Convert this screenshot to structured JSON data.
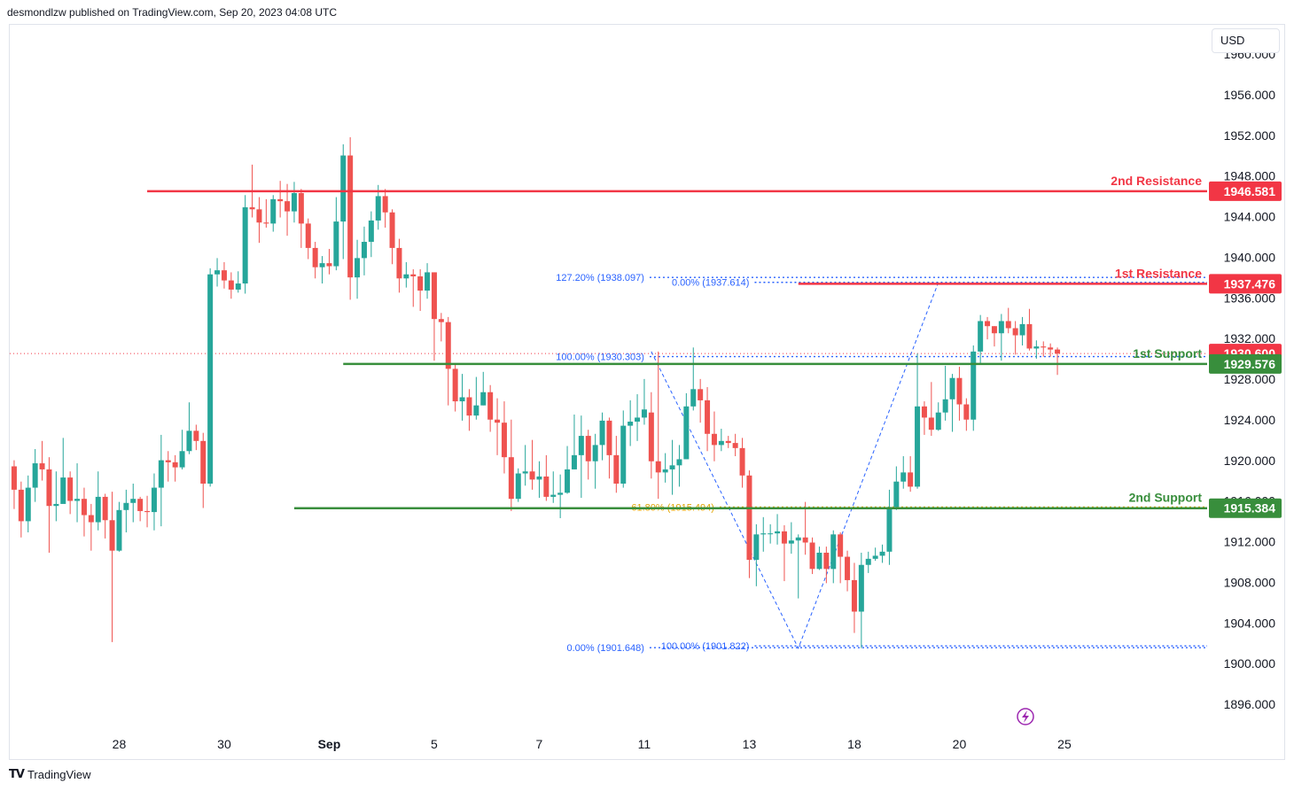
{
  "header": {
    "published_by": "desmondlzw published on TradingView.com, Sep 20, 2023 04:08 UTC"
  },
  "currency_button": "USD",
  "footer": {
    "brand": "TradingView",
    "logo_icon": "tradingview-logo-icon"
  },
  "colors": {
    "up": "#26a69a",
    "down": "#ef5350",
    "resistance": "#f23645",
    "support": "#388e3c",
    "fib": "#2962ff",
    "fib_golden": "#e0a400",
    "bar_down": "#f23645"
  },
  "chart_data": {
    "type": "candlestick",
    "y_range": [
      1893,
      1961
    ],
    "y_ticks": [
      "1960.000",
      "1956.000",
      "1952.000",
      "1948.000",
      "1944.000",
      "1940.000",
      "1936.000",
      "1932.000",
      "1928.000",
      "1924.000",
      "1920.000",
      "1916.000",
      "1912.000",
      "1908.000",
      "1904.000",
      "1900.000",
      "1896.000"
    ],
    "x_ticks": [
      {
        "label": "28",
        "index": 15
      },
      {
        "label": "30",
        "index": 30
      },
      {
        "label": "Sep",
        "index": 45,
        "bold": true
      },
      {
        "label": "5",
        "index": 60
      },
      {
        "label": "7",
        "index": 75
      },
      {
        "label": "11",
        "index": 90
      },
      {
        "label": "13",
        "index": 105
      },
      {
        "label": "18",
        "index": 120
      },
      {
        "label": "20",
        "index": 135
      },
      {
        "label": "25",
        "index": 150
      }
    ],
    "candles": [
      [
        1919.5,
        1917.2,
        1920.1,
        1915.3
      ],
      [
        1917.2,
        1914.1,
        1918.0,
        1912.5
      ],
      [
        1914.1,
        1917.4,
        1918.6,
        1913.0
      ],
      [
        1917.4,
        1919.8,
        1921.2,
        1916.0
      ],
      [
        1919.8,
        1919.2,
        1922.0,
        1918.1
      ],
      [
        1919.2,
        1915.6,
        1920.4,
        1911.0
      ],
      [
        1915.6,
        1915.8,
        1919.0,
        1914.1
      ],
      [
        1915.8,
        1918.4,
        1922.3,
        1916.0
      ],
      [
        1918.4,
        1916.1,
        1919.0,
        1914.8
      ],
      [
        1916.1,
        1916.3,
        1919.8,
        1914.0
      ],
      [
        1916.3,
        1914.7,
        1917.4,
        1912.6
      ],
      [
        1914.7,
        1914.0,
        1915.8,
        1911.2
      ],
      [
        1914.0,
        1916.5,
        1919.0,
        1913.2
      ],
      [
        1916.5,
        1914.2,
        1916.8,
        1912.4
      ],
      [
        1914.2,
        1911.2,
        1917.0,
        1902.2
      ],
      [
        1911.2,
        1915.2,
        1916.0,
        1911.1
      ],
      [
        1915.2,
        1915.9,
        1917.2,
        1913.0
      ],
      [
        1915.9,
        1916.3,
        1917.8,
        1914.0
      ],
      [
        1916.3,
        1915.1,
        1916.5,
        1914.1
      ],
      [
        1915.1,
        1915.0,
        1916.6,
        1913.5
      ],
      [
        1915.0,
        1917.4,
        1918.8,
        1913.2
      ],
      [
        1917.4,
        1920.1,
        1922.6,
        1913.6
      ],
      [
        1920.1,
        1919.9,
        1921.0,
        1918.0
      ],
      [
        1919.9,
        1919.4,
        1920.6,
        1918.0
      ],
      [
        1919.4,
        1921.0,
        1923.1,
        1919.2
      ],
      [
        1921.0,
        1923.0,
        1925.8,
        1920.7
      ],
      [
        1923.0,
        1922.0,
        1923.6,
        1921.1
      ],
      [
        1922.0,
        1917.8,
        1922.8,
        1915.4
      ],
      [
        1917.8,
        1938.4,
        1939.0,
        1917.5
      ],
      [
        1938.4,
        1938.8,
        1940.0,
        1937.2
      ],
      [
        1938.8,
        1937.8,
        1939.6,
        1937.0
      ],
      [
        1937.8,
        1936.9,
        1938.6,
        1936.0
      ],
      [
        1936.9,
        1937.5,
        1938.7,
        1936.6
      ],
      [
        1937.5,
        1945.0,
        1946.2,
        1936.5
      ],
      [
        1945.0,
        1944.8,
        1949.2,
        1944.0
      ],
      [
        1944.8,
        1943.5,
        1946.0,
        1941.5
      ],
      [
        1943.5,
        1943.4,
        1945.8,
        1943.0
      ],
      [
        1943.4,
        1945.8,
        1946.2,
        1942.6
      ],
      [
        1945.8,
        1945.6,
        1947.6,
        1944.0
      ],
      [
        1945.6,
        1944.6,
        1947.3,
        1942.2
      ],
      [
        1944.6,
        1946.4,
        1947.5,
        1943.5
      ],
      [
        1946.4,
        1943.4,
        1946.8,
        1941.0
      ],
      [
        1943.4,
        1941.0,
        1943.9,
        1939.9
      ],
      [
        1941.0,
        1939.1,
        1941.6,
        1938.0
      ],
      [
        1939.1,
        1939.5,
        1940.2,
        1937.5
      ],
      [
        1939.5,
        1939.2,
        1940.9,
        1938.4
      ],
      [
        1939.2,
        1943.6,
        1946.0,
        1938.8
      ],
      [
        1943.6,
        1950.1,
        1951.2,
        1939.9
      ],
      [
        1950.1,
        1938.1,
        1951.9,
        1935.9
      ],
      [
        1938.1,
        1940.0,
        1941.8,
        1936.0
      ],
      [
        1940.0,
        1941.6,
        1943.1,
        1938.3
      ],
      [
        1941.6,
        1943.7,
        1944.6,
        1940.1
      ],
      [
        1943.7,
        1946.1,
        1947.2,
        1942.8
      ],
      [
        1946.1,
        1944.5,
        1946.8,
        1943.0
      ],
      [
        1944.5,
        1941.0,
        1944.8,
        1939.4
      ],
      [
        1941.0,
        1938.0,
        1941.9,
        1936.6
      ],
      [
        1938.0,
        1938.4,
        1939.6,
        1937.1
      ],
      [
        1938.4,
        1938.2,
        1938.9,
        1935.2
      ],
      [
        1938.2,
        1936.8,
        1938.9,
        1934.8
      ],
      [
        1936.8,
        1938.6,
        1939.5,
        1936.0
      ],
      [
        1938.6,
        1934.0,
        1938.6,
        1929.9
      ],
      [
        1934.0,
        1933.7,
        1934.6,
        1931.8
      ],
      [
        1933.7,
        1929.1,
        1934.2,
        1925.5
      ],
      [
        1929.1,
        1925.9,
        1929.5,
        1924.9
      ],
      [
        1925.9,
        1926.3,
        1928.6,
        1924.0
      ],
      [
        1926.3,
        1924.5,
        1927.1,
        1923.0
      ],
      [
        1924.5,
        1925.5,
        1928.3,
        1924.1
      ],
      [
        1925.5,
        1926.8,
        1928.8,
        1925.5
      ],
      [
        1926.8,
        1924.1,
        1927.5,
        1922.9
      ],
      [
        1924.1,
        1923.8,
        1926.2,
        1920.6
      ],
      [
        1923.8,
        1920.4,
        1925.9,
        1918.8
      ],
      [
        1920.4,
        1916.3,
        1924.1,
        1915.1
      ],
      [
        1916.3,
        1918.8,
        1919.3,
        1916.0
      ],
      [
        1918.8,
        1919.0,
        1921.6,
        1917.6
      ],
      [
        1919.0,
        1918.2,
        1922.1,
        1917.2
      ],
      [
        1918.2,
        1918.5,
        1920.0,
        1916.4
      ],
      [
        1918.5,
        1916.5,
        1920.6,
        1916.1
      ],
      [
        1916.5,
        1916.7,
        1919.0,
        1915.9
      ],
      [
        1916.7,
        1916.9,
        1918.7,
        1914.4
      ],
      [
        1916.9,
        1919.2,
        1921.5,
        1916.8
      ],
      [
        1919.2,
        1920.6,
        1924.6,
        1919.2
      ],
      [
        1920.6,
        1922.5,
        1924.5,
        1916.4
      ],
      [
        1922.5,
        1920.0,
        1923.1,
        1918.2
      ],
      [
        1920.0,
        1921.6,
        1922.7,
        1917.3
      ],
      [
        1921.6,
        1924.0,
        1924.8,
        1920.1
      ],
      [
        1924.0,
        1920.6,
        1924.3,
        1918.3
      ],
      [
        1920.6,
        1917.8,
        1922.5,
        1916.9
      ],
      [
        1917.8,
        1923.5,
        1925.0,
        1917.4
      ],
      [
        1923.5,
        1923.9,
        1926.0,
        1921.5
      ],
      [
        1923.9,
        1924.3,
        1926.6,
        1922.0
      ],
      [
        1924.3,
        1925.1,
        1928.1,
        1923.6
      ],
      [
        1924.8,
        1920.0,
        1926.8,
        1918.3
      ],
      [
        1920.0,
        1918.9,
        1930.8,
        1916.3
      ],
      [
        1918.9,
        1919.2,
        1920.8,
        1917.9
      ],
      [
        1919.2,
        1919.6,
        1922.1,
        1916.7
      ],
      [
        1919.6,
        1920.2,
        1921.6,
        1917.5
      ],
      [
        1920.2,
        1925.4,
        1926.7,
        1920.2
      ],
      [
        1925.4,
        1927.1,
        1931.2,
        1925.0
      ],
      [
        1927.1,
        1926.0,
        1928.1,
        1923.8
      ],
      [
        1926.0,
        1922.7,
        1927.3,
        1921.0
      ],
      [
        1922.7,
        1921.6,
        1924.9,
        1920.0
      ],
      [
        1921.6,
        1922.0,
        1923.2,
        1921.0
      ],
      [
        1922.0,
        1921.8,
        1922.5,
        1921.3
      ],
      [
        1921.8,
        1921.3,
        1922.7,
        1920.5
      ],
      [
        1921.3,
        1918.6,
        1922.3,
        1917.4
      ],
      [
        1918.6,
        1910.3,
        1919.1,
        1908.5
      ],
      [
        1910.3,
        1912.8,
        1913.8,
        1907.7
      ],
      [
        1912.8,
        1912.9,
        1914.5,
        1911.1
      ],
      [
        1912.9,
        1912.9,
        1913.8,
        1911.9
      ],
      [
        1912.9,
        1913.1,
        1914.8,
        1911.8
      ],
      [
        1913.1,
        1911.9,
        1913.7,
        1908.2
      ],
      [
        1911.9,
        1912.2,
        1914.0,
        1910.9
      ],
      [
        1912.2,
        1912.5,
        1912.8,
        1906.5
      ],
      [
        1912.5,
        1912.0,
        1916.0,
        1910.8
      ],
      [
        1912.0,
        1909.4,
        1912.5,
        1908.9
      ],
      [
        1909.4,
        1911.0,
        1911.6,
        1909.3
      ],
      [
        1911.0,
        1909.4,
        1911.6,
        1908.0
      ],
      [
        1909.4,
        1912.8,
        1913.2,
        1908.0
      ],
      [
        1912.8,
        1910.6,
        1913.0,
        1908.0
      ],
      [
        1910.6,
        1908.3,
        1911.2,
        1907.2
      ],
      [
        1908.3,
        1905.2,
        1910.0,
        1903.1
      ],
      [
        1905.2,
        1909.8,
        1911.0,
        1901.6
      ],
      [
        1909.8,
        1910.4,
        1911.1,
        1909.0
      ],
      [
        1910.4,
        1910.7,
        1911.5,
        1910.2
      ],
      [
        1910.7,
        1911.1,
        1911.8,
        1910.0
      ],
      [
        1911.1,
        1915.5,
        1917.2,
        1909.8
      ],
      [
        1915.5,
        1918.0,
        1919.5,
        1915.2
      ],
      [
        1918.0,
        1918.9,
        1920.5,
        1917.3
      ],
      [
        1918.9,
        1917.5,
        1920.5,
        1917.0
      ],
      [
        1917.5,
        1925.4,
        1930.6,
        1917.3
      ],
      [
        1925.4,
        1924.3,
        1925.9,
        1922.6
      ],
      [
        1924.3,
        1923.1,
        1927.8,
        1922.5
      ],
      [
        1923.1,
        1924.8,
        1925.8,
        1923.0
      ],
      [
        1924.8,
        1926.1,
        1929.4,
        1924.0
      ],
      [
        1926.1,
        1928.2,
        1928.6,
        1922.9
      ],
      [
        1928.2,
        1925.6,
        1929.3,
        1924.0
      ],
      [
        1925.6,
        1924.1,
        1926.2,
        1923.0
      ],
      [
        1924.1,
        1930.8,
        1931.4,
        1923.0
      ],
      [
        1930.8,
        1933.8,
        1934.4,
        1929.6
      ],
      [
        1933.8,
        1933.3,
        1934.2,
        1932.0
      ],
      [
        1933.3,
        1932.6,
        1933.3,
        1931.3
      ],
      [
        1932.6,
        1933.8,
        1934.5,
        1929.9
      ],
      [
        1933.8,
        1933.1,
        1935.1,
        1932.6
      ],
      [
        1933.1,
        1932.4,
        1933.8,
        1930.5
      ],
      [
        1932.4,
        1933.5,
        1934.2,
        1931.4
      ],
      [
        1933.5,
        1931.1,
        1935.0,
        1930.9
      ],
      [
        1931.1,
        1931.3,
        1931.9,
        1930.1
      ],
      [
        1931.3,
        1931.2,
        1931.8,
        1930.3
      ],
      [
        1931.2,
        1931.0,
        1931.6,
        1930.3
      ],
      [
        1931.0,
        1930.6,
        1931.2,
        1928.5
      ]
    ],
    "last_price": 1930.6,
    "levels": [
      {
        "label": "2nd Resistance",
        "price": 1946.581,
        "value_label": "1946.581",
        "kind": "resistance",
        "from_index": 19
      },
      {
        "label": "1st Resistance",
        "price": 1937.476,
        "value_label": "1937.476",
        "kind": "resistance",
        "from_index": 112
      },
      {
        "label": "1st Support",
        "price": 1929.576,
        "value_label": "1929.576",
        "kind": "support",
        "from_index": 47
      },
      {
        "label": "2nd Support",
        "price": 1915.384,
        "value_label": "1915.384",
        "kind": "support",
        "from_index": 40
      }
    ],
    "price_badges": [
      {
        "value_label": "1946.581",
        "price": 1946.581,
        "kind": "resistance"
      },
      {
        "value_label": "1937.476",
        "price": 1937.476,
        "kind": "resistance"
      },
      {
        "value_label": "1930.600",
        "price": 1930.6,
        "kind": "resistance"
      },
      {
        "value_label": "1929.576",
        "price": 1929.576,
        "kind": "support"
      },
      {
        "value_label": "1915.384",
        "price": 1915.384,
        "kind": "support"
      }
    ],
    "fib_levels": [
      {
        "label": "127.20% (1938.097)",
        "price": 1938.097,
        "from_index": 90,
        "color": "fib"
      },
      {
        "label": "0.00% (1937.614)",
        "price": 1937.614,
        "from_index": 105,
        "color": "fib"
      },
      {
        "label": "100.00% (1930.303)",
        "price": 1930.303,
        "from_index": 90,
        "color": "fib"
      },
      {
        "label": "61.80% (1915.494)",
        "price": 1915.494,
        "from_index": 100,
        "color": "fib_golden"
      },
      {
        "label": "0.00% (1901.648)",
        "price": 1901.648,
        "from_index": 90,
        "color": "fib"
      },
      {
        "label": "100.00% (1901.822)",
        "price": 1901.822,
        "from_index": 105,
        "color": "fib"
      }
    ],
    "zigzag": [
      {
        "index": 91,
        "price": 1930.8
      },
      {
        "index": 112,
        "price": 1901.6
      },
      {
        "index": 132,
        "price": 1937.6
      }
    ],
    "lightning_icon": "lightning-icon"
  }
}
